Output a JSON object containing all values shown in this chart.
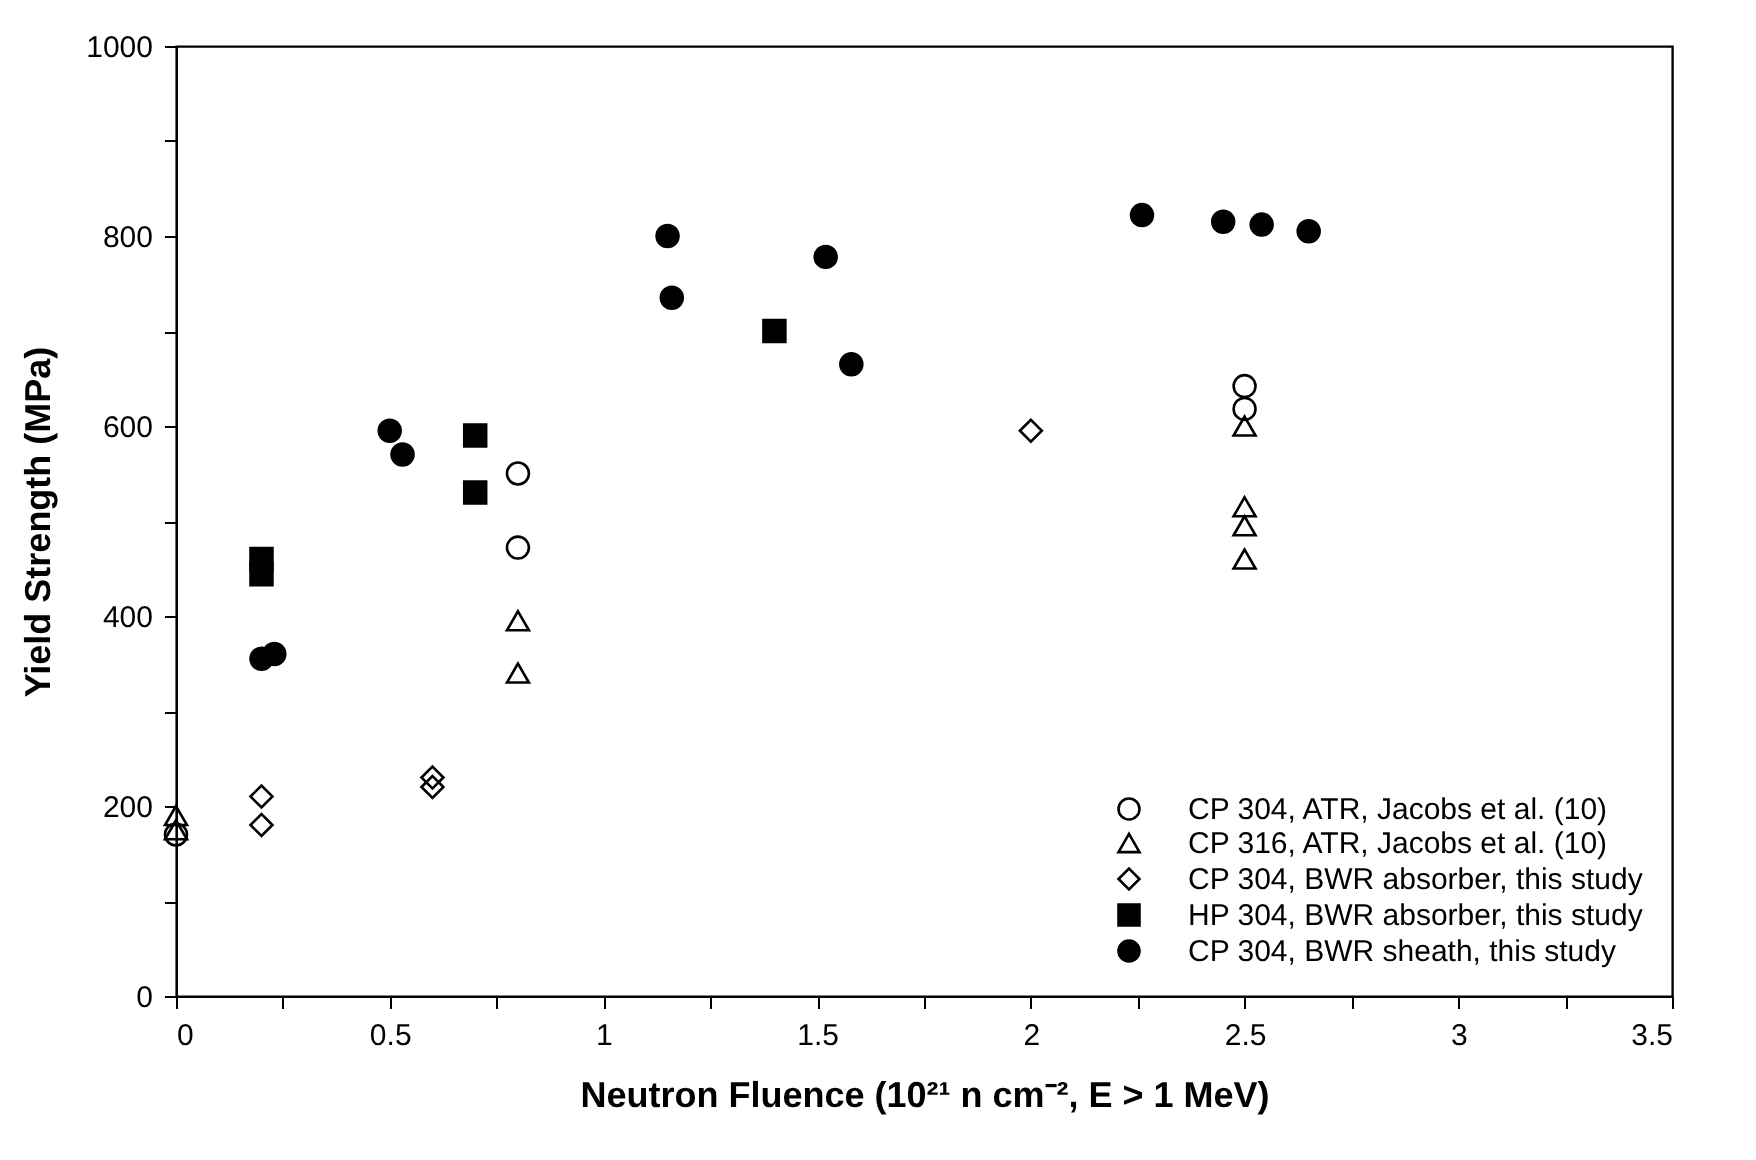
{
  "chart_data": {
    "type": "scatter",
    "xlabel": "Neutron Fluence (10²¹ n cm⁻², E > 1 MeV)",
    "ylabel": "Yield Strength (MPa)",
    "xlim": [
      0,
      3.5
    ],
    "xticks": [
      0,
      {
        "value": 0.25,
        "label": null
      },
      0.5,
      {
        "value": 0.75,
        "label": null
      },
      1,
      {
        "value": 1.25,
        "label": null
      },
      1.5,
      {
        "value": 1.75,
        "label": null
      },
      2,
      {
        "value": 2.25,
        "label": null
      },
      2.5,
      {
        "value": 2.75,
        "label": null
      },
      3,
      {
        "value": 3.25,
        "label": null
      },
      3.5
    ],
    "ylim": [
      0,
      1000
    ],
    "yticks": [
      0,
      {
        "value": 100,
        "label": null
      },
      200,
      {
        "value": 300,
        "label": null
      },
      400,
      {
        "value": 500,
        "label": null
      },
      600,
      {
        "value": 700,
        "label": null
      },
      800,
      {
        "value": 900,
        "label": null
      },
      1000
    ],
    "grid": false,
    "legend": "bottom right",
    "series": [
      {
        "name": "CP 304, ATR, Jacobs et al. (10)",
        "color": "#000000",
        "marker": "circle",
        "x": [
          0,
          0.8,
          0.8,
          2.5,
          2.5
        ],
        "values": [
          170,
          550,
          472,
          642,
          618
        ]
      },
      {
        "name": "CP 316, ATR, Jacobs et al. (10)",
        "color": "#000000",
        "marker": "triangle",
        "x": [
          0,
          0,
          0.8,
          0.8,
          2.5,
          2.5,
          2.5,
          2.5
        ],
        "values": [
          190,
          175,
          395,
          340,
          600,
          515,
          495,
          460
        ]
      },
      {
        "name": "CP 304, BWR absorber, this study",
        "color": "#000000",
        "marker": "diamond",
        "x": [
          0.2,
          0.2,
          0.6,
          0.6,
          2.0
        ],
        "values": [
          210,
          180,
          230,
          220,
          595
        ]
      },
      {
        "name": "HP 304, BWR absorber, this study",
        "color": "#000000",
        "marker": "square",
        "x": [
          0.2,
          0.2,
          0.7,
          0.7,
          1.4
        ],
        "values": [
          460,
          444,
          590,
          530,
          700
        ]
      },
      {
        "name": "CP 304, BWR sheath, this study",
        "color": "#000000",
        "marker": "circle",
        "x": [
          0.2,
          0.23,
          0.5,
          0.53,
          1.15,
          1.16,
          1.52,
          1.58,
          2.26,
          2.45,
          2.54,
          2.65
        ],
        "values": [
          355,
          360,
          595,
          570,
          800,
          735,
          778,
          665,
          822,
          815,
          812,
          805
        ]
      }
    ]
  }
}
